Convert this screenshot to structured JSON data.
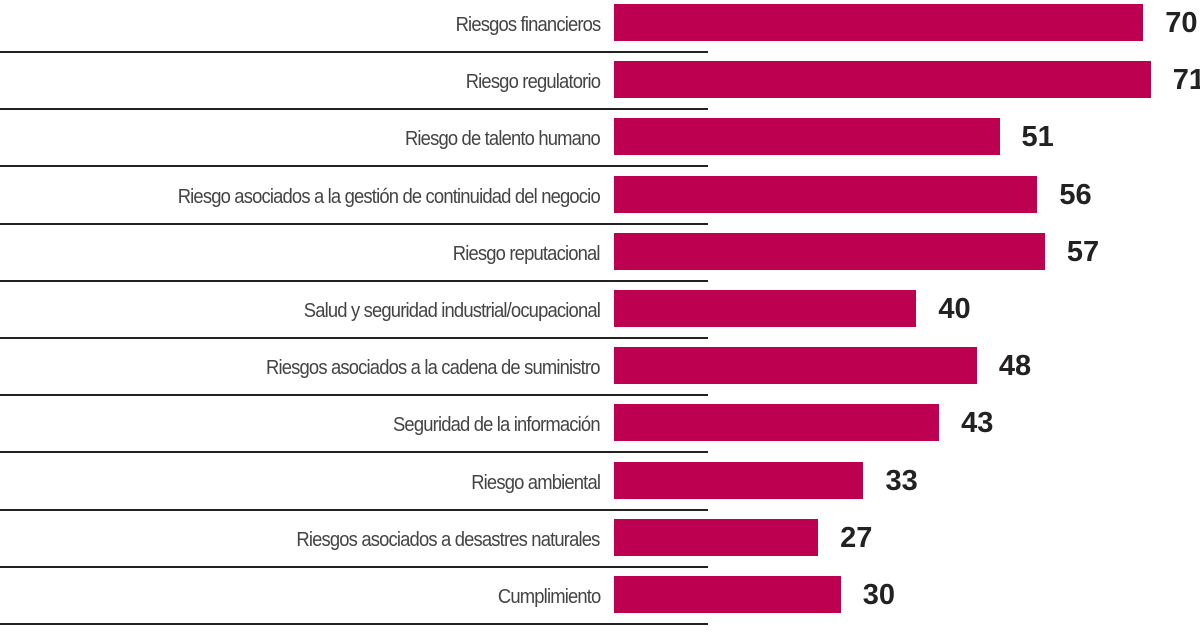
{
  "chart_data": {
    "type": "bar",
    "orientation": "horizontal",
    "categories": [
      "Riesgos financieros",
      "Riesgo regulatorio",
      "Riesgo de talento humano",
      "Riesgo asociados a la gestión de continuidad del negocio",
      "Riesgo reputacional",
      "Salud y seguridad industrial/ocupacional",
      "Riesgos asociados a la cadena de suministro",
      "Seguridad de la información",
      "Riesgo ambiental",
      "Riesgos asociados a desastres naturales",
      "Cumplimiento"
    ],
    "values": [
      70,
      71,
      51,
      56,
      57,
      40,
      48,
      43,
      33,
      27,
      30
    ],
    "bar_color": "#bd004f",
    "xlim": [
      0,
      71
    ],
    "grid": false,
    "legend": "none"
  }
}
